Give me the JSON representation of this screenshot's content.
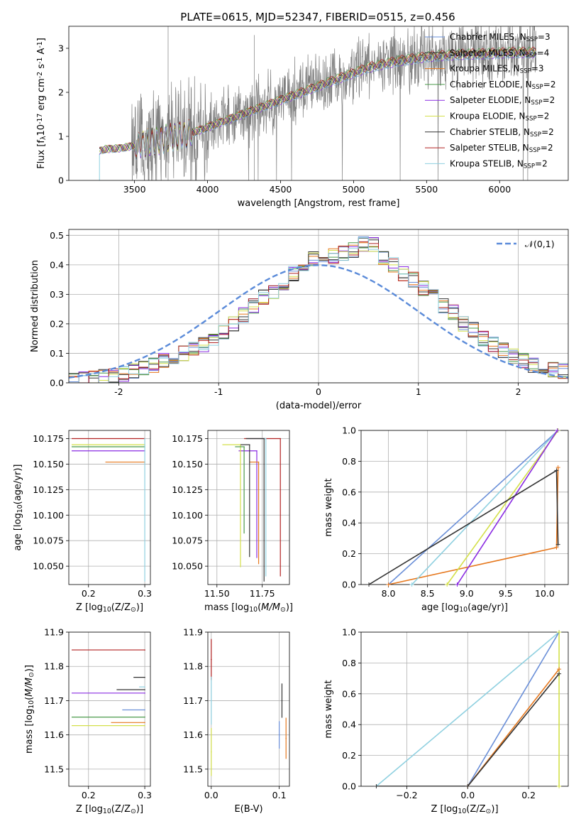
{
  "figure_title": "PLATE=0615, MJD=52347, FIBERID=0515, z=0.456",
  "models": [
    {
      "label": "Chabrier MILES, N$_{SSP}$=3",
      "color": "#6a8fd8"
    },
    {
      "label": "Salpeter MILES, N$_{SSP}$=4",
      "color": "#333333"
    },
    {
      "label": "Kroupa MILES, N$_{SSP}$=3",
      "color": "#e6781e"
    },
    {
      "label": "Chabrier ELODIE, N$_{SSP}$=2",
      "color": "#4a9a4a"
    },
    {
      "label": "Salpeter ELODIE, N$_{SSP}$=2",
      "color": "#8a2be2"
    },
    {
      "label": "Kroupa ELODIE, N$_{SSP}$=2",
      "color": "#d4e04a"
    },
    {
      "label": "Chabrier STELIB, N$_{SSP}$=2",
      "color": "#333333"
    },
    {
      "label": "Salpeter STELIB, N$_{SSP}$=2",
      "color": "#b22222"
    },
    {
      "label": "Kroupa STELIB, N$_{SSP}$=2",
      "color": "#8fd0e0"
    }
  ],
  "chart_data": [
    {
      "id": "spectrum",
      "type": "line",
      "xlabel": "wavelength [Angstrom, rest frame]",
      "ylabel": "Flux [f$_\\lambda$10$^{-17}$ erg cm$^{-2}$ s$^{-1}$ A$^{-1}$]",
      "xlim": [
        3050,
        6470
      ],
      "ylim": [
        0,
        3.5
      ],
      "xticks": [
        3500,
        4000,
        4500,
        5000,
        5500,
        6000
      ],
      "yticks": [
        0,
        1,
        2,
        3
      ],
      "grid": false,
      "legend": "top-right",
      "data_series": {
        "name": "",
        "color": "#7f7f7f"
      },
      "continuum_x": [
        3200,
        3260,
        3300,
        3400,
        3500,
        3700,
        3900,
        4100,
        4300,
        4500,
        4700,
        4900,
        5100,
        5300,
        5500,
        5700,
        5900,
        6100,
        6250
      ],
      "continuum_y": [
        0.6,
        0.68,
        0.72,
        0.74,
        0.8,
        0.95,
        1.1,
        1.35,
        1.6,
        1.85,
        2.1,
        2.35,
        2.6,
        2.75,
        2.85,
        2.9,
        2.92,
        2.95,
        2.95
      ]
    },
    {
      "id": "residuals",
      "type": "step",
      "xlabel": "(data-model)/error",
      "ylabel": "Normed distribution",
      "xlim": [
        -2.5,
        2.5
      ],
      "ylim": [
        0,
        0.52
      ],
      "xticks": [
        -2,
        -1,
        0,
        1,
        2
      ],
      "yticks": [
        0.0,
        0.1,
        0.2,
        0.3,
        0.4,
        0.5
      ],
      "grid": true,
      "legend": "top-right",
      "gaussian_label": "$\\mathcal{N}(0,1)$",
      "gaussian_color": "#5b8bd9",
      "bin_edges_start": -2.5,
      "bin_width": 0.1,
      "base_hist": [
        0.01,
        0.012,
        0.015,
        0.02,
        0.025,
        0.03,
        0.04,
        0.05,
        0.06,
        0.075,
        0.09,
        0.1,
        0.115,
        0.13,
        0.14,
        0.17,
        0.2,
        0.23,
        0.26,
        0.29,
        0.31,
        0.34,
        0.37,
        0.39,
        0.42,
        0.4,
        0.43,
        0.44,
        0.45,
        0.47,
        0.47,
        0.42,
        0.4,
        0.37,
        0.35,
        0.32,
        0.3,
        0.26,
        0.24,
        0.2,
        0.18,
        0.15,
        0.13,
        0.11,
        0.09,
        0.075,
        0.06,
        0.05,
        0.045,
        0.04
      ]
    },
    {
      "id": "age_vs_Z",
      "type": "errorbar",
      "xlabel": "Z [log$_{10}$(Z/Z$_\\odot$)]",
      "ylabel": "age  [log$_{10}$($age/yr$)]",
      "xlim": [
        0.165,
        0.31
      ],
      "ylim": [
        10.032,
        10.183
      ],
      "xticks": [
        0.2,
        0.3
      ],
      "yticks": [
        10.05,
        10.075,
        10.1,
        10.125,
        10.15,
        10.175
      ],
      "grid": true,
      "points": [
        {
          "model": 7,
          "x": 0.3,
          "y": 10.175,
          "xerr_lo": 0.13,
          "yerr_lo": 0.0
        },
        {
          "model": 5,
          "x": 0.3,
          "y": 10.169,
          "xerr_lo": 0.13,
          "yerr_lo": 0.0
        },
        {
          "model": 3,
          "x": 0.3,
          "y": 10.167,
          "xerr_lo": 0.13,
          "yerr_lo": 0.0
        },
        {
          "model": 4,
          "x": 0.3,
          "y": 10.163,
          "xerr_lo": 0.13,
          "yerr_lo": 0.0
        },
        {
          "model": 2,
          "x": 0.3,
          "y": 10.152,
          "xerr_lo": 0.07,
          "yerr_lo": 0.0
        },
        {
          "model": 8,
          "x": 0.3,
          "y": 10.175,
          "xerr_lo": 0.0,
          "yerr_lo": 0.14
        }
      ]
    },
    {
      "id": "age_vs_mass",
      "type": "errorbar",
      "xlabel": "mass [log$_{10}$($M/M_\\odot$)]",
      "ylabel": "",
      "xlim": [
        11.45,
        11.9
      ],
      "ylim": [
        10.032,
        10.183
      ],
      "xticks": [
        11.5,
        11.75
      ],
      "yticks": [
        10.05,
        10.075,
        10.1,
        10.125,
        10.15,
        10.175
      ],
      "grid": true,
      "points": [
        {
          "model": 7,
          "x": 11.85,
          "y": 10.175,
          "xerr_lo": 0.2,
          "yerr_lo": 0.135
        },
        {
          "model": 8,
          "x": 11.77,
          "y": 10.175,
          "xerr_lo": 0.1,
          "yerr_lo": 0.135
        },
        {
          "model": 1,
          "x": 11.76,
          "y": 10.175,
          "xerr_lo": 0.1,
          "yerr_lo": 0.14
        },
        {
          "model": 4,
          "x": 11.72,
          "y": 10.163,
          "xerr_lo": 0.1,
          "yerr_lo": 0.105
        },
        {
          "model": 2,
          "x": 11.73,
          "y": 10.152,
          "xerr_lo": 0.05,
          "yerr_lo": 0.1
        },
        {
          "model": 5,
          "x": 11.63,
          "y": 10.169,
          "xerr_lo": 0.1,
          "yerr_lo": 0.12
        },
        {
          "model": 6,
          "x": 11.68,
          "y": 10.169,
          "xerr_lo": 0.05,
          "yerr_lo": 0.11
        },
        {
          "model": 3,
          "x": 11.65,
          "y": 10.167,
          "xerr_lo": 0.05,
          "yerr_lo": 0.085
        }
      ]
    },
    {
      "id": "weight_vs_age",
      "type": "line",
      "xlabel": "age  [log$_{10}$($age/yr$)]",
      "ylabel": "mass weight",
      "xlim": [
        7.65,
        10.3
      ],
      "ylim": [
        0,
        1
      ],
      "xticks": [
        8.0,
        8.5,
        9.0,
        9.5,
        10.0
      ],
      "yticks": [
        0.0,
        0.2,
        0.4,
        0.6,
        0.8,
        1.0
      ],
      "grid": true,
      "series": [
        {
          "model": 0,
          "x": [
            8.0,
            10.17
          ],
          "y": [
            0.0,
            1.0
          ]
        },
        {
          "model": 2,
          "x": [
            8.0,
            10.15,
            10.17
          ],
          "y": [
            0.0,
            0.24,
            0.76
          ]
        },
        {
          "model": 8,
          "x": [
            8.3,
            10.17
          ],
          "y": [
            0.0,
            1.0
          ]
        },
        {
          "model": 5,
          "x": [
            8.75,
            10.17
          ],
          "y": [
            0.0,
            1.0
          ]
        },
        {
          "model": 4,
          "x": [
            8.88,
            10.16
          ],
          "y": [
            0.0,
            1.0
          ]
        },
        {
          "model": 6,
          "x": [
            7.75,
            10.15,
            10.17
          ],
          "y": [
            0.0,
            0.74,
            0.26
          ]
        }
      ]
    },
    {
      "id": "mass_vs_Z",
      "type": "errorbar",
      "xlabel": "Z [log$_{10}$(Z/Z$_\\odot$)]",
      "ylabel": "mass [log$_{10}$($M/M_\\odot$)]",
      "xlim": [
        0.165,
        0.31
      ],
      "ylim": [
        11.45,
        11.9
      ],
      "xticks": [
        0.2,
        0.3
      ],
      "yticks": [
        11.5,
        11.6,
        11.7,
        11.8,
        11.9
      ],
      "grid": true,
      "points": [
        {
          "model": 7,
          "x": 0.3,
          "y": 11.848,
          "xerr_lo": 0.13,
          "yerr_lo": 0.0
        },
        {
          "model": 1,
          "x": 0.3,
          "y": 11.768,
          "xerr_lo": 0.02,
          "yerr_lo": 0.0
        },
        {
          "model": 8,
          "x": 0.3,
          "y": 11.74,
          "xerr_lo": 0.01,
          "yerr_lo": 0.0
        },
        {
          "model": 6,
          "x": 0.3,
          "y": 11.732,
          "xerr_lo": 0.05,
          "yerr_lo": 0.0
        },
        {
          "model": 4,
          "x": 0.3,
          "y": 11.722,
          "xerr_lo": 0.13,
          "yerr_lo": 0.0
        },
        {
          "model": 0,
          "x": 0.3,
          "y": 11.673,
          "xerr_lo": 0.04,
          "yerr_lo": 0.0
        },
        {
          "model": 3,
          "x": 0.3,
          "y": 11.652,
          "xerr_lo": 0.13,
          "yerr_lo": 0.0
        },
        {
          "model": 2,
          "x": 0.3,
          "y": 11.636,
          "xerr_lo": 0.06,
          "yerr_lo": 0.0
        },
        {
          "model": 5,
          "x": 0.3,
          "y": 11.627,
          "xerr_lo": 0.13,
          "yerr_lo": 0.0
        }
      ]
    },
    {
      "id": "mass_vs_ebv",
      "type": "errorbar",
      "xlabel": "E(B-V)",
      "ylabel": "",
      "xlim": [
        -0.005,
        0.115
      ],
      "ylim": [
        11.45,
        11.9
      ],
      "xticks": [
        0.0,
        0.1
      ],
      "yticks": [
        11.5,
        11.6,
        11.7,
        11.8,
        11.9
      ],
      "grid": true,
      "points": [
        {
          "model": 7,
          "x": 0.0,
          "y": 11.82,
          "yerr": 0.06
        },
        {
          "model": 8,
          "x": 0.0,
          "y": 11.7,
          "yerr": 0.07
        },
        {
          "model": 5,
          "x": 0.0,
          "y": 11.55,
          "yerr": 0.07
        },
        {
          "model": 6,
          "x": 0.104,
          "y": 11.7,
          "yerr": 0.05
        },
        {
          "model": 0,
          "x": 0.1,
          "y": 11.6,
          "yerr": 0.04
        },
        {
          "model": 2,
          "x": 0.11,
          "y": 11.59,
          "yerr": 0.06
        }
      ]
    },
    {
      "id": "weight_vs_Z",
      "type": "line",
      "xlabel": "Z [log$_{10}$(Z/Z$_\\odot$)]",
      "ylabel": "mass weight",
      "xlim": [
        -0.35,
        0.33
      ],
      "ylim": [
        0,
        1
      ],
      "xticks": [
        -0.2,
        0.0,
        0.2
      ],
      "yticks": [
        0.0,
        0.2,
        0.4,
        0.6,
        0.8,
        1.0
      ],
      "grid": true,
      "series": [
        {
          "model": 8,
          "x": [
            -0.3,
            0.3
          ],
          "y": [
            0.0,
            1.0
          ]
        },
        {
          "model": 0,
          "x": [
            0.0,
            0.3
          ],
          "y": [
            0.0,
            1.0
          ]
        },
        {
          "model": 2,
          "x": [
            0.0,
            0.3
          ],
          "y": [
            0.0,
            0.76
          ]
        },
        {
          "model": 6,
          "x": [
            -0.3,
            0.0,
            0.3
          ],
          "y": [
            0.0,
            0.0,
            0.73
          ]
        },
        {
          "model": 5,
          "x": [
            0.3,
            0.3
          ],
          "y": [
            0.0,
            1.0
          ]
        }
      ]
    }
  ]
}
